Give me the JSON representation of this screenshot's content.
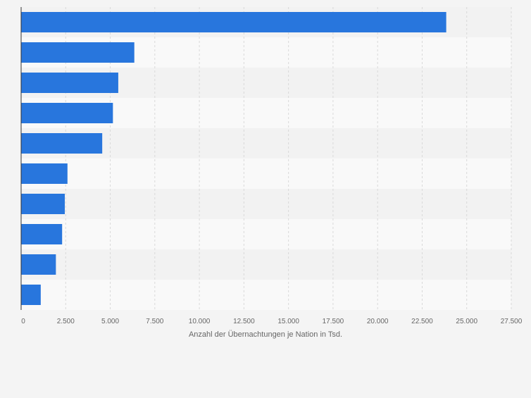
{
  "chart_data": {
    "type": "bar",
    "orientation": "horizontal",
    "title": "",
    "categories": [
      "",
      "",
      "",
      "",
      "",
      "",
      "",
      "",
      "",
      ""
    ],
    "values": [
      23850,
      6350,
      5450,
      5150,
      4550,
      2600,
      2450,
      2300,
      1950,
      1100
    ],
    "xlabel": "Anzahl der Übernachtungen je Nation in Tsd.",
    "ylabel": "",
    "xlim": [
      0,
      27500
    ],
    "xticks": [
      0,
      2500,
      5000,
      7500,
      10000,
      12500,
      15000,
      17500,
      20000,
      22500,
      25000,
      27500
    ],
    "xtick_labels": [
      "0",
      "2.500",
      "5.000",
      "7.500",
      "10.000",
      "12.500",
      "15.000",
      "17.500",
      "20.000",
      "22.500",
      "25.000",
      "27.500"
    ],
    "grid": true,
    "legend": "none",
    "colors": {
      "bar": "#2876dd",
      "background": "#f4f4f4",
      "band_light": "#f9f9f9",
      "band_dark": "#f2f2f2",
      "grid": "#d9d9d9",
      "axis": "#333333",
      "tick_text": "#666666"
    }
  }
}
